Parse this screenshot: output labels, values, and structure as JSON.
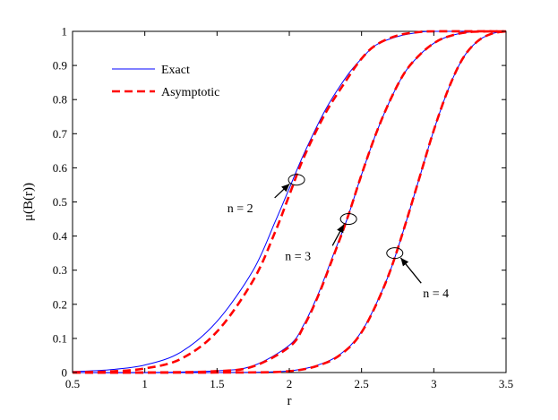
{
  "chart_data": {
    "type": "line",
    "xlabel": "r",
    "ylabel": "μ(B(r))",
    "xlim": [
      0.5,
      3.5
    ],
    "ylim": [
      0,
      1
    ],
    "xticks": [
      "0.5",
      "1",
      "1.5",
      "2",
      "2.5",
      "3",
      "3.5"
    ],
    "yticks": [
      "0",
      "0.1",
      "0.2",
      "0.3",
      "0.4",
      "0.5",
      "0.6",
      "0.7",
      "0.8",
      "0.9",
      "1"
    ],
    "grid": false,
    "legend_position": "top-left",
    "legend": [
      {
        "label": "Exact",
        "color": "#0000ff",
        "style": "solid"
      },
      {
        "label": "Asymptotic",
        "color": "#ff0000",
        "style": "dashed"
      }
    ],
    "series": [
      {
        "name": "Exact",
        "group": "n = 2",
        "color": "#0000ff",
        "dash": "solid",
        "x": [
          0.5,
          0.75,
          1.0,
          1.25,
          1.5,
          1.75,
          1.9,
          2.0,
          2.1,
          2.25,
          2.4,
          2.5,
          2.6,
          2.75,
          2.9,
          3.0,
          3.5
        ],
        "y": [
          0.003,
          0.008,
          0.022,
          0.06,
          0.15,
          0.3,
          0.44,
          0.54,
          0.64,
          0.77,
          0.87,
          0.92,
          0.96,
          0.985,
          0.997,
          1.0,
          1.0
        ]
      },
      {
        "name": "Asymptotic",
        "group": "n = 2",
        "color": "#ff0000",
        "dash": "dashed",
        "x": [
          0.5,
          0.75,
          1.0,
          1.25,
          1.5,
          1.75,
          1.9,
          2.0,
          2.1,
          2.25,
          2.4,
          2.5,
          2.6,
          2.75,
          2.9,
          3.0,
          3.5
        ],
        "y": [
          0.001,
          0.003,
          0.012,
          0.04,
          0.12,
          0.27,
          0.41,
          0.52,
          0.63,
          0.76,
          0.86,
          0.92,
          0.96,
          0.988,
          0.998,
          1.0,
          1.0
        ]
      },
      {
        "name": "Exact",
        "group": "n = 3",
        "color": "#0000ff",
        "dash": "solid",
        "x": [
          0.5,
          1.0,
          1.5,
          1.75,
          2.0,
          2.1,
          2.2,
          2.3,
          2.4,
          2.5,
          2.6,
          2.7,
          2.8,
          2.9,
          3.0,
          3.1,
          3.25,
          3.5
        ],
        "y": [
          0.0,
          0.0,
          0.005,
          0.02,
          0.08,
          0.14,
          0.23,
          0.34,
          0.45,
          0.58,
          0.7,
          0.8,
          0.88,
          0.93,
          0.965,
          0.985,
          0.998,
          1.0
        ]
      },
      {
        "name": "Asymptotic",
        "group": "n = 3",
        "color": "#ff0000",
        "dash": "dashed",
        "x": [
          0.5,
          1.0,
          1.5,
          1.75,
          2.0,
          2.1,
          2.2,
          2.3,
          2.4,
          2.5,
          2.6,
          2.7,
          2.8,
          2.9,
          3.0,
          3.1,
          3.25,
          3.5
        ],
        "y": [
          0.0,
          0.0,
          0.004,
          0.018,
          0.075,
          0.135,
          0.225,
          0.335,
          0.45,
          0.58,
          0.7,
          0.8,
          0.88,
          0.93,
          0.965,
          0.985,
          0.998,
          1.0
        ]
      },
      {
        "name": "Exact",
        "group": "n = 4",
        "color": "#0000ff",
        "dash": "solid",
        "x": [
          0.5,
          1.5,
          2.0,
          2.25,
          2.4,
          2.5,
          2.6,
          2.7,
          2.8,
          2.9,
          3.0,
          3.1,
          3.2,
          3.3,
          3.4,
          3.5
        ],
        "y": [
          0.0,
          0.0,
          0.005,
          0.03,
          0.07,
          0.12,
          0.2,
          0.3,
          0.43,
          0.57,
          0.71,
          0.83,
          0.92,
          0.97,
          0.993,
          1.0
        ]
      },
      {
        "name": "Asymptotic",
        "group": "n = 4",
        "color": "#ff0000",
        "dash": "dashed",
        "x": [
          0.5,
          1.5,
          2.0,
          2.25,
          2.4,
          2.5,
          2.6,
          2.7,
          2.8,
          2.9,
          3.0,
          3.1,
          3.2,
          3.3,
          3.4,
          3.5
        ],
        "y": [
          0.0,
          0.0,
          0.004,
          0.028,
          0.068,
          0.118,
          0.198,
          0.3,
          0.43,
          0.57,
          0.71,
          0.83,
          0.92,
          0.97,
          0.993,
          1.0
        ]
      }
    ],
    "annotations": [
      {
        "text": "n = 2",
        "circle_at": [
          2.05,
          0.565
        ],
        "label_at": [
          1.75,
          0.47
        ]
      },
      {
        "text": "n = 3",
        "circle_at": [
          2.41,
          0.45
        ],
        "label_at": [
          2.15,
          0.33
        ]
      },
      {
        "text": "n = 4",
        "circle_at": [
          2.73,
          0.35
        ],
        "label_at": [
          2.95,
          0.22
        ]
      }
    ]
  }
}
